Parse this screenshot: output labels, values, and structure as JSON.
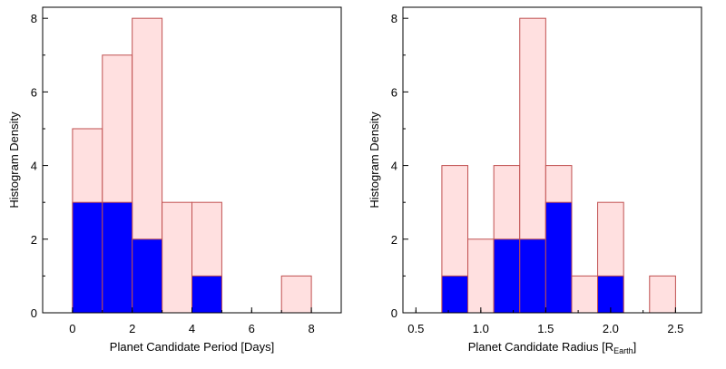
{
  "colors": {
    "total_fill": "#ffe0e0",
    "total_stroke": "#c05050",
    "subset_fill": "#0000ff",
    "subset_stroke": "#c05050"
  },
  "chart_data": [
    {
      "type": "bar",
      "panel": "left",
      "xlabel": "Planet Candidate Period [Days]",
      "ylabel": "Histogram Density",
      "xlim": [
        -1,
        9
      ],
      "ylim": [
        0,
        8.3
      ],
      "xticks": [
        0,
        2,
        4,
        6,
        8
      ],
      "xtick_labels": [
        "0",
        "2",
        "4",
        "6",
        "8"
      ],
      "yticks": [
        0,
        2,
        4,
        6,
        8
      ],
      "ytick_labels": [
        "0",
        "2",
        "4",
        "6",
        "8"
      ],
      "bin_edges": [
        0,
        1,
        2,
        3,
        4,
        5,
        6,
        7,
        8
      ],
      "series": [
        {
          "values": [
            5,
            7,
            8,
            3,
            3,
            0,
            0,
            1
          ]
        },
        {
          "values": [
            3,
            3,
            2,
            0,
            1,
            0,
            0,
            0
          ]
        }
      ]
    },
    {
      "type": "bar",
      "panel": "right",
      "xlabel": "Planet Candidate Radius [R",
      "xlabel_sub": "Earth",
      "xlabel_end": "]",
      "ylabel": "Histogram Density",
      "xlim": [
        0.4,
        2.7
      ],
      "ylim": [
        0,
        8.3
      ],
      "xticks": [
        0.5,
        1.0,
        1.5,
        2.0,
        2.5
      ],
      "xtick_labels": [
        "0.5",
        "1.0",
        "1.5",
        "2.0",
        "2.5"
      ],
      "yticks": [
        0,
        2,
        4,
        6,
        8
      ],
      "ytick_labels": [
        "0",
        "2",
        "4",
        "6",
        "8"
      ],
      "bin_edges": [
        0.5,
        0.7,
        0.9,
        1.1,
        1.3,
        1.5,
        1.7,
        1.9,
        2.1,
        2.3,
        2.5
      ],
      "series": [
        {
          "values": [
            0,
            4,
            2,
            4,
            8,
            4,
            1,
            3,
            0,
            1
          ]
        },
        {
          "values": [
            0,
            1,
            0,
            2,
            2,
            3,
            0,
            1,
            0,
            0
          ]
        }
      ]
    }
  ]
}
